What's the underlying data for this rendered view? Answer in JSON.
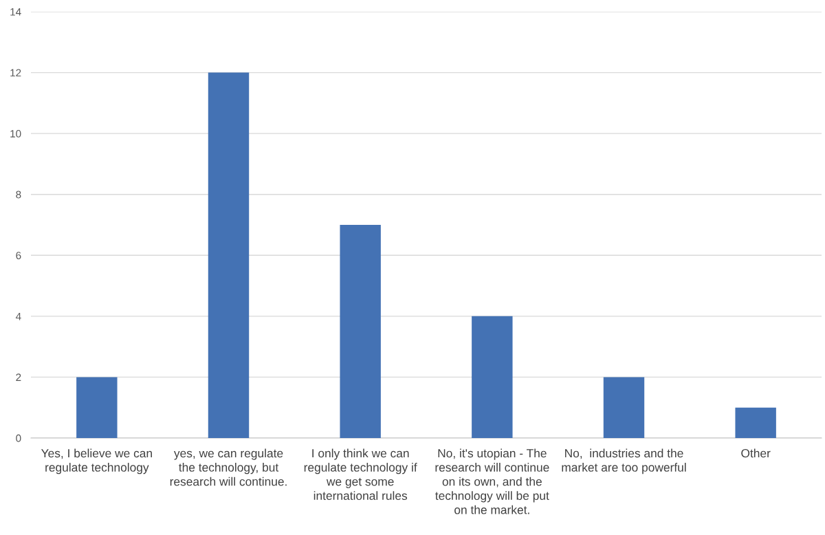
{
  "chart_data": {
    "type": "bar",
    "categories": [
      "Yes, I believe we can regulate technology",
      "yes, we can regulate the technology, but research will continue.",
      "I only think we can regulate technology if we get some international rules",
      "No, it's utopian - The research will continue on its own, and the technology will be put on the market.",
      "No,  industries and the market are too powerful",
      "Other"
    ],
    "values": [
      2,
      12,
      7,
      4,
      2,
      1
    ],
    "color": "#4472b4",
    "ylim": [
      0,
      14
    ],
    "yticks": [
      0,
      2,
      4,
      6,
      8,
      10,
      12,
      14
    ],
    "grid": "y"
  }
}
